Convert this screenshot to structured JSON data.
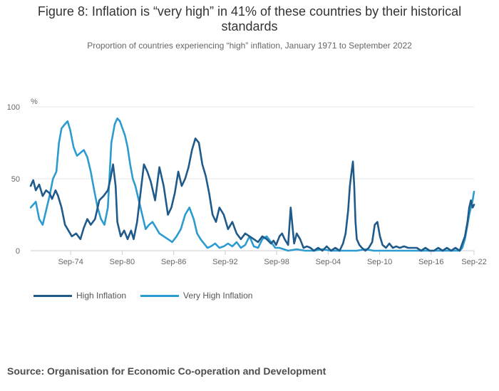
{
  "title_line1": "Figure 8: Inflation is “very high” in 41% of these countries by their historical",
  "title_line2": "standards",
  "subtitle": "Proportion of countries experiencing “high” inflation, January 1971 to September 2022",
  "source": "Source: Organisation for Economic Co-operation and Development",
  "chart_data": {
    "type": "line",
    "ylabel": "%",
    "ylim": [
      0,
      100
    ],
    "yticks": [
      0,
      50,
      100
    ],
    "xlim": [
      1971.0,
      2022.667
    ],
    "xticks": [
      {
        "label": "Sep-74",
        "value": 1975.667
      },
      {
        "label": "Sep-80",
        "value": 1981.667
      },
      {
        "label": "Sep-86",
        "value": 1987.667
      },
      {
        "label": "Sep-92",
        "value": 1993.667
      },
      {
        "label": "Sep-98",
        "value": 1999.667
      },
      {
        "label": "Sep-04",
        "value": 2005.667
      },
      {
        "label": "Sep-10",
        "value": 2011.667
      },
      {
        "label": "Sep-16",
        "value": 2017.667
      },
      {
        "label": "Sep-22",
        "value": 2023.667
      }
    ],
    "series": [
      {
        "name": "High Inflation",
        "color": "#1f5a8a",
        "x": [
          1971.0,
          1971.3,
          1971.6,
          1972.0,
          1972.4,
          1972.8,
          1973.2,
          1973.5,
          1973.9,
          1974.2,
          1974.6,
          1975.0,
          1975.4,
          1975.8,
          1976.3,
          1976.8,
          1977.2,
          1977.6,
          1978.0,
          1978.5,
          1979.0,
          1979.5,
          1980.0,
          1980.3,
          1980.6,
          1980.9,
          1981.1,
          1981.5,
          1981.9,
          1982.3,
          1982.7,
          1983.0,
          1983.4,
          1983.8,
          1984.2,
          1984.6,
          1985.0,
          1985.5,
          1986.0,
          1986.5,
          1987.0,
          1987.4,
          1987.8,
          1988.2,
          1988.6,
          1989.0,
          1989.4,
          1989.8,
          1990.2,
          1990.6,
          1991.0,
          1991.4,
          1991.8,
          1992.2,
          1992.6,
          1993.0,
          1993.5,
          1994.0,
          1994.5,
          1995.0,
          1995.5,
          1996.0,
          1996.5,
          1997.0,
          1997.5,
          1998.0,
          1998.5,
          1999.0,
          1999.3,
          1999.6,
          2000.0,
          2000.3,
          2000.6,
          2001.0,
          2001.3,
          2001.7,
          2002.0,
          2002.4,
          2002.8,
          2003.2,
          2003.6,
          2004.0,
          2004.5,
          2005.0,
          2005.5,
          2006.0,
          2006.5,
          2007.0,
          2007.4,
          2007.7,
          2008.0,
          2008.2,
          2008.4,
          2008.55,
          2008.7,
          2008.85,
          2009.0,
          2009.3,
          2009.6,
          2010.0,
          2010.4,
          2010.8,
          2011.1,
          2011.4,
          2011.7,
          2012.0,
          2012.4,
          2012.8,
          2013.2,
          2013.6,
          2014.0,
          2014.5,
          2015.0,
          2015.5,
          2016.0,
          2016.5,
          2017.0,
          2017.5,
          2018.0,
          2018.5,
          2019.0,
          2019.5,
          2020.0,
          2020.5,
          2021.0,
          2021.3,
          2021.6,
          2021.9,
          2022.1,
          2022.3,
          2022.5,
          2022.667
        ],
        "values": [
          45,
          49,
          42,
          46,
          38,
          42,
          40,
          36,
          42,
          38,
          30,
          18,
          14,
          10,
          12,
          8,
          16,
          22,
          18,
          22,
          35,
          38,
          42,
          50,
          60,
          45,
          20,
          10,
          14,
          8,
          14,
          8,
          20,
          40,
          60,
          55,
          48,
          35,
          58,
          45,
          25,
          30,
          40,
          55,
          45,
          50,
          58,
          70,
          78,
          75,
          60,
          52,
          40,
          25,
          20,
          30,
          25,
          15,
          20,
          12,
          8,
          12,
          10,
          8,
          6,
          10,
          8,
          5,
          7,
          4,
          10,
          12,
          8,
          4,
          30,
          5,
          12,
          8,
          2,
          3,
          2,
          0,
          2,
          0,
          3,
          0,
          2,
          0,
          5,
          12,
          28,
          45,
          55,
          62,
          45,
          20,
          8,
          4,
          2,
          0,
          2,
          6,
          18,
          20,
          10,
          4,
          2,
          5,
          2,
          3,
          2,
          3,
          2,
          2,
          2,
          0,
          2,
          0,
          0,
          2,
          0,
          2,
          0,
          2,
          0,
          5,
          10,
          20,
          30,
          35,
          30,
          32
        ]
      },
      {
        "name": "Very High Inflation",
        "color": "#2b9bd0",
        "x": [
          1971.0,
          1971.3,
          1971.6,
          1972.0,
          1972.4,
          1972.8,
          1973.2,
          1973.6,
          1974.0,
          1974.3,
          1974.6,
          1975.0,
          1975.3,
          1975.6,
          1976.0,
          1976.4,
          1976.8,
          1977.2,
          1977.6,
          1978.0,
          1978.4,
          1978.8,
          1979.2,
          1979.6,
          1980.0,
          1980.4,
          1980.8,
          1981.1,
          1981.4,
          1981.7,
          1982.0,
          1982.3,
          1982.6,
          1982.9,
          1983.2,
          1983.6,
          1984.0,
          1984.4,
          1984.8,
          1985.2,
          1985.6,
          1986.0,
          1986.5,
          1987.0,
          1987.5,
          1988.0,
          1988.5,
          1989.0,
          1989.5,
          1990.0,
          1990.4,
          1990.8,
          1991.2,
          1991.6,
          1992.0,
          1992.5,
          1993.0,
          1993.5,
          1994.0,
          1994.5,
          1995.0,
          1995.5,
          1996.0,
          1996.5,
          1997.0,
          1997.5,
          1998.0,
          1998.5,
          1999.0,
          1999.5,
          2000.0,
          2000.5,
          2001.0,
          2002.0,
          2003.0,
          2004.0,
          2005.0,
          2006.0,
          2007.0,
          2008.0,
          2009.0,
          2010.0,
          2011.0,
          2012.0,
          2013.0,
          2014.0,
          2015.0,
          2016.0,
          2017.0,
          2018.0,
          2019.0,
          2020.0,
          2021.0,
          2021.3,
          2021.6,
          2021.9,
          2022.1,
          2022.3,
          2022.5,
          2022.667
        ],
        "values": [
          30,
          32,
          34,
          22,
          18,
          28,
          38,
          50,
          55,
          75,
          85,
          88,
          90,
          84,
          72,
          66,
          68,
          70,
          65,
          55,
          42,
          30,
          22,
          18,
          30,
          75,
          88,
          92,
          90,
          85,
          80,
          72,
          60,
          50,
          45,
          35,
          25,
          15,
          18,
          20,
          16,
          12,
          10,
          8,
          6,
          10,
          15,
          25,
          30,
          22,
          12,
          8,
          5,
          2,
          3,
          5,
          2,
          3,
          5,
          3,
          6,
          2,
          4,
          10,
          3,
          2,
          8,
          10,
          6,
          2,
          2,
          1,
          0,
          1,
          0,
          0,
          1,
          0,
          0,
          0,
          0,
          1,
          0,
          0,
          0,
          0,
          0,
          0,
          0,
          0,
          0,
          0,
          0,
          2,
          8,
          18,
          25,
          30,
          35,
          41
        ]
      }
    ]
  }
}
